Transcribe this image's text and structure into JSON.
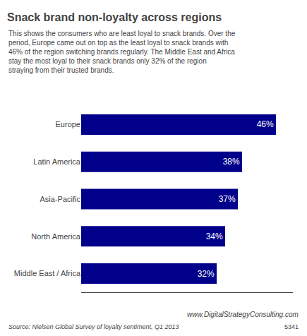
{
  "chart_data": {
    "type": "bar",
    "orientation": "horizontal",
    "title": "Snack brand non-loyalty across regions",
    "subtitle": "This shows the consumers who are least loyal to snack brands. Over the period, Europe came out on top as the least loyal to snack brands with 46% of the region switching brands regularly. The Middle East and Africa stay the most loyal to their snack brands only 32% of the region straying from their trusted brands.",
    "categories": [
      "Europe",
      "Latin America",
      "Asia-Pacific",
      "North America",
      "Middle East / Africa"
    ],
    "values": [
      46,
      38,
      37,
      34,
      32
    ],
    "value_labels": [
      "46%",
      "38%",
      "37%",
      "34%",
      "32%"
    ],
    "data_labels": true,
    "color": "#00008B",
    "xlim": [
      0,
      50
    ],
    "tick_labels": "y",
    "grid": false,
    "annotations": [
      "www.DigitalStrategyConsulting.com",
      "Source: Nielsen Global Survey of loyalty sentiment, Q1 2013",
      "5341"
    ]
  }
}
